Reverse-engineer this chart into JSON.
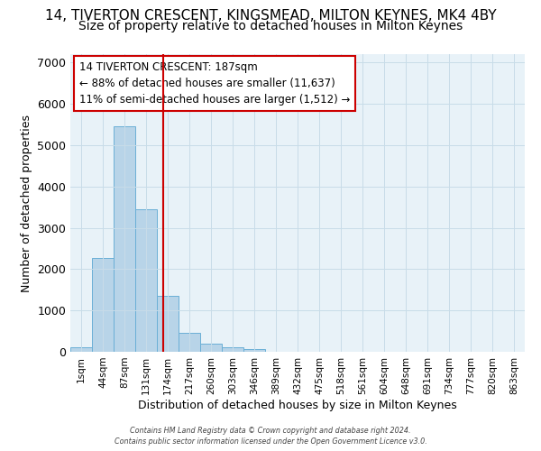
{
  "title1": "14, TIVERTON CRESCENT, KINGSMEAD, MILTON KEYNES, MK4 4BY",
  "title2": "Size of property relative to detached houses in Milton Keynes",
  "xlabel": "Distribution of detached houses by size in Milton Keynes",
  "ylabel": "Number of detached properties",
  "bar_labels": [
    "1sqm",
    "44sqm",
    "87sqm",
    "131sqm",
    "174sqm",
    "217sqm",
    "260sqm",
    "303sqm",
    "346sqm",
    "389sqm",
    "432sqm",
    "475sqm",
    "518sqm",
    "561sqm",
    "604sqm",
    "648sqm",
    "691sqm",
    "734sqm",
    "777sqm",
    "820sqm",
    "863sqm"
  ],
  "bar_values": [
    100,
    2270,
    5450,
    3440,
    1350,
    460,
    195,
    120,
    65,
    0,
    0,
    0,
    0,
    0,
    0,
    0,
    0,
    0,
    0,
    0,
    0
  ],
  "bar_color": "#b8d4e8",
  "bar_edgecolor": "#6aafd6",
  "bar_linewidth": 0.7,
  "red_line_color": "#cc0000",
  "annotation_line1": "14 TIVERTON CRESCENT: 187sqm",
  "annotation_line2": "← 88% of detached houses are smaller (11,637)",
  "annotation_line3": "11% of semi-detached houses are larger (1,512) →",
  "annotation_box_color": "#ffffff",
  "annotation_box_edgecolor": "#cc0000",
  "ylim": [
    0,
    7200
  ],
  "yticks": [
    0,
    1000,
    2000,
    3000,
    4000,
    5000,
    6000,
    7000
  ],
  "grid_color": "#c8dce8",
  "background_color": "#e8f2f8",
  "footer1": "Contains HM Land Registry data © Crown copyright and database right 2024.",
  "footer2": "Contains public sector information licensed under the Open Government Licence v3.0.",
  "title1_fontsize": 11,
  "title2_fontsize": 10
}
